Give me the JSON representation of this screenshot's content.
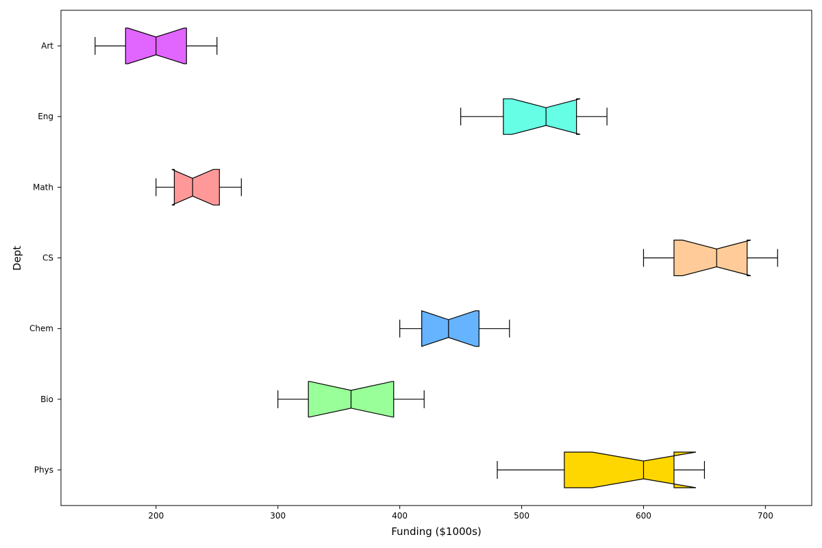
{
  "chart_data": {
    "type": "boxplot",
    "orientation": "horizontal",
    "notched": true,
    "title": "",
    "xlabel": "Funding ($1000s)",
    "ylabel": "Dept",
    "xlim": [
      122,
      738
    ],
    "xticks": [
      200,
      300,
      400,
      500,
      600,
      700
    ],
    "grid": false,
    "categories": [
      "Phys",
      "Bio",
      "Chem",
      "CS",
      "Math",
      "Eng",
      "Art"
    ],
    "boxes": [
      {
        "label": "Phys",
        "whisker_low": 480,
        "q1": 535,
        "median": 600,
        "q3": 625,
        "whisker_high": 650,
        "notch_low": 558,
        "notch_high": 643,
        "color": "#FFD700"
      },
      {
        "label": "Bio",
        "whisker_low": 300,
        "q1": 325,
        "median": 360,
        "q3": 395,
        "whisker_high": 420,
        "notch_low": 326,
        "notch_high": 394,
        "color": "#99FF99"
      },
      {
        "label": "Chem",
        "whisker_low": 400,
        "q1": 418,
        "median": 440,
        "q3": 465,
        "whisker_high": 490,
        "notch_low": 418,
        "notch_high": 462,
        "color": "#66B3FF"
      },
      {
        "label": "CS",
        "whisker_low": 600,
        "q1": 625,
        "median": 660,
        "q3": 685,
        "whisker_high": 710,
        "notch_low": 632,
        "notch_high": 688,
        "color": "#FFCC99"
      },
      {
        "label": "Math",
        "whisker_low": 200,
        "q1": 215,
        "median": 230,
        "q3": 252,
        "whisker_high": 270,
        "notch_low": 213,
        "notch_high": 247,
        "color": "#FF9999"
      },
      {
        "label": "Eng",
        "whisker_low": 450,
        "q1": 485,
        "median": 520,
        "q3": 545,
        "whisker_high": 570,
        "notch_low": 492,
        "notch_high": 548,
        "color": "#66FFE6"
      },
      {
        "label": "Art",
        "whisker_low": 150,
        "q1": 175,
        "median": 200,
        "q3": 225,
        "whisker_high": 250,
        "notch_low": 177,
        "notch_high": 223,
        "color": "#E066FF"
      }
    ]
  }
}
